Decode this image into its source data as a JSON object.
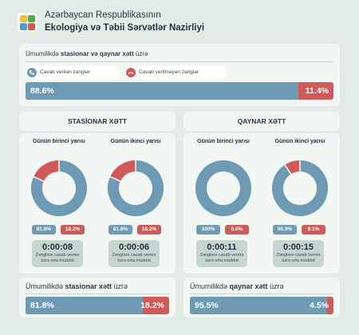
{
  "header": {
    "title_line1": "Azərbaycan Respublikasının",
    "title_line2": "Ekologiya və Təbii Sərvətlər Nazirliyi"
  },
  "colors": {
    "answered": "#6e9bb3",
    "unanswered": "#cf5a5a",
    "background": "#e2ebe5",
    "card": "#f3f7f4"
  },
  "overall": {
    "label_prefix": "Ümumilikdə ",
    "label_bold": "stasionar və qaynar xətt",
    "label_suffix": " üzrə",
    "legend_answered": "Cavab verilən zənglər",
    "legend_unanswered": "Cavab verilməyən zənglər",
    "answered_text": "88.6%",
    "unanswered_text": "11.4%"
  },
  "stationary": {
    "title": "STASİONAR XƏTT",
    "halves": [
      {
        "label": "Günün birinci yarısı",
        "answered_text": "81.8%",
        "unanswered_text": "18.2%",
        "time": "0:00:08",
        "caption": "Zənglərə cavab vermə üzrə orta müddət"
      },
      {
        "label": "Günün ikinci yarısı",
        "answered_text": "81.8%",
        "unanswered_text": "18.2%",
        "time": "0:00:06",
        "caption": "Zənglərə cavab vermə üzrə orta müddət"
      }
    ]
  },
  "hotline": {
    "title": "QAYNAR XƏTT",
    "halves": [
      {
        "label": "Günün birinci yarısı",
        "answered_text": "100%",
        "unanswered_text": "0.0%",
        "time": "0:00:11",
        "caption": "Zənglərə cavab vermə üzrə orta müddət"
      },
      {
        "label": "Günün ikinci yarısı",
        "answered_text": "90.9%",
        "unanswered_text": "9.1%",
        "time": "0:00:15",
        "caption": "Zənglərə cavab vermə üzrə orta müddət"
      }
    ]
  },
  "bottom_stationary": {
    "label_prefix": "Ümumilikdə ",
    "label_bold": "stasionar xətt",
    "label_suffix": " üzrə",
    "answered_text": "81.8%",
    "unanswered_text": "18.2%"
  },
  "bottom_hotline": {
    "label_prefix": "Ümumilikdə ",
    "label_bold": "qaynar xətt",
    "label_suffix": " üzrə",
    "answered_text": "95.5%",
    "unanswered_text": "4.5%"
  },
  "chart_data": [
    {
      "type": "bar",
      "id": "overall",
      "categories": [
        "Cavab verilən zənglər",
        "Cavab verilməyən zənglər"
      ],
      "values": [
        88.6,
        11.4
      ],
      "stacked": true
    },
    {
      "type": "pie",
      "id": "stationary-first",
      "categories": [
        "Cavab verilən zənglər",
        "Cavab verilməyən zənglər"
      ],
      "values": [
        81.8,
        18.2
      ],
      "donut": true
    },
    {
      "type": "pie",
      "id": "stationary-second",
      "categories": [
        "Cavab verilən zənglər",
        "Cavab verilməyən zənglər"
      ],
      "values": [
        81.8,
        18.2
      ],
      "donut": true
    },
    {
      "type": "pie",
      "id": "hotline-first",
      "categories": [
        "Cavab verilən zənglər",
        "Cavab verilməyən zənglər"
      ],
      "values": [
        100,
        0
      ],
      "donut": true
    },
    {
      "type": "pie",
      "id": "hotline-second",
      "categories": [
        "Cavab verilən zənglər",
        "Cavab verilməyən zənglər"
      ],
      "values": [
        90.9,
        9.1
      ],
      "donut": true
    },
    {
      "type": "bar",
      "id": "bottom-stationary",
      "categories": [
        "Cavab verilən zənglər",
        "Cavab verilməyən zənglər"
      ],
      "values": [
        81.8,
        18.2
      ],
      "stacked": true
    },
    {
      "type": "bar",
      "id": "bottom-hotline",
      "categories": [
        "Cavab verilən zənglər",
        "Cavab verilməyən zənglər"
      ],
      "values": [
        95.5,
        4.5
      ],
      "stacked": true
    }
  ]
}
